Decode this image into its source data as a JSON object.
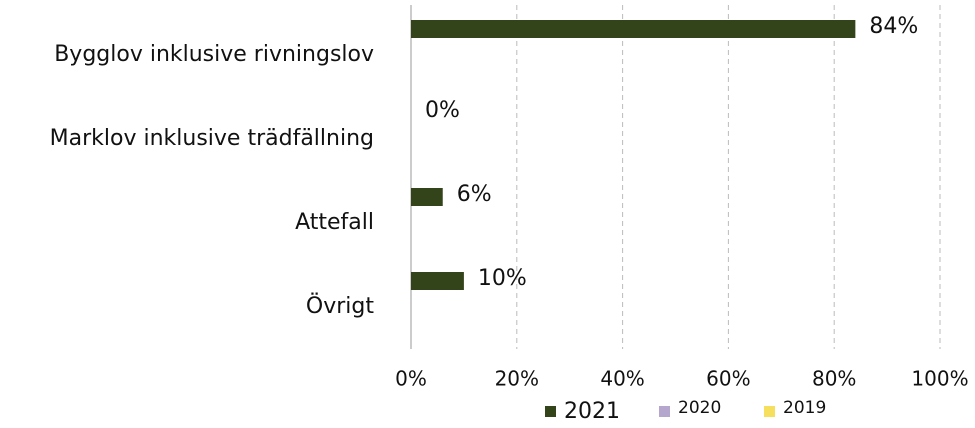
{
  "chart_data": {
    "type": "bar",
    "orientation": "horizontal",
    "categories": [
      "Bygglov inklusive rivningslov",
      "Marklov inklusive trädfällning",
      "Attefall",
      "Övrigt"
    ],
    "series": [
      {
        "name": "2021",
        "color": "#33441a",
        "values": [
          84,
          0,
          6,
          10
        ],
        "value_labels": [
          "84%",
          "0%",
          "6%",
          "10%"
        ]
      },
      {
        "name": "2020",
        "color": "#b4a6cc",
        "values": [
          null,
          null,
          null,
          null
        ]
      },
      {
        "name": "2019",
        "color": "#f7df5e",
        "values": [
          null,
          null,
          null,
          null
        ]
      }
    ],
    "xlim": [
      0,
      100
    ],
    "xticks": [
      {
        "value": 0,
        "label": "0%"
      },
      {
        "value": 20,
        "label": "20%"
      },
      {
        "value": 40,
        "label": "40%"
      },
      {
        "value": 60,
        "label": "60%"
      },
      {
        "value": 80,
        "label": "80%"
      },
      {
        "value": 100,
        "label": "100%"
      }
    ],
    "grid": true,
    "legend": "bottom"
  }
}
